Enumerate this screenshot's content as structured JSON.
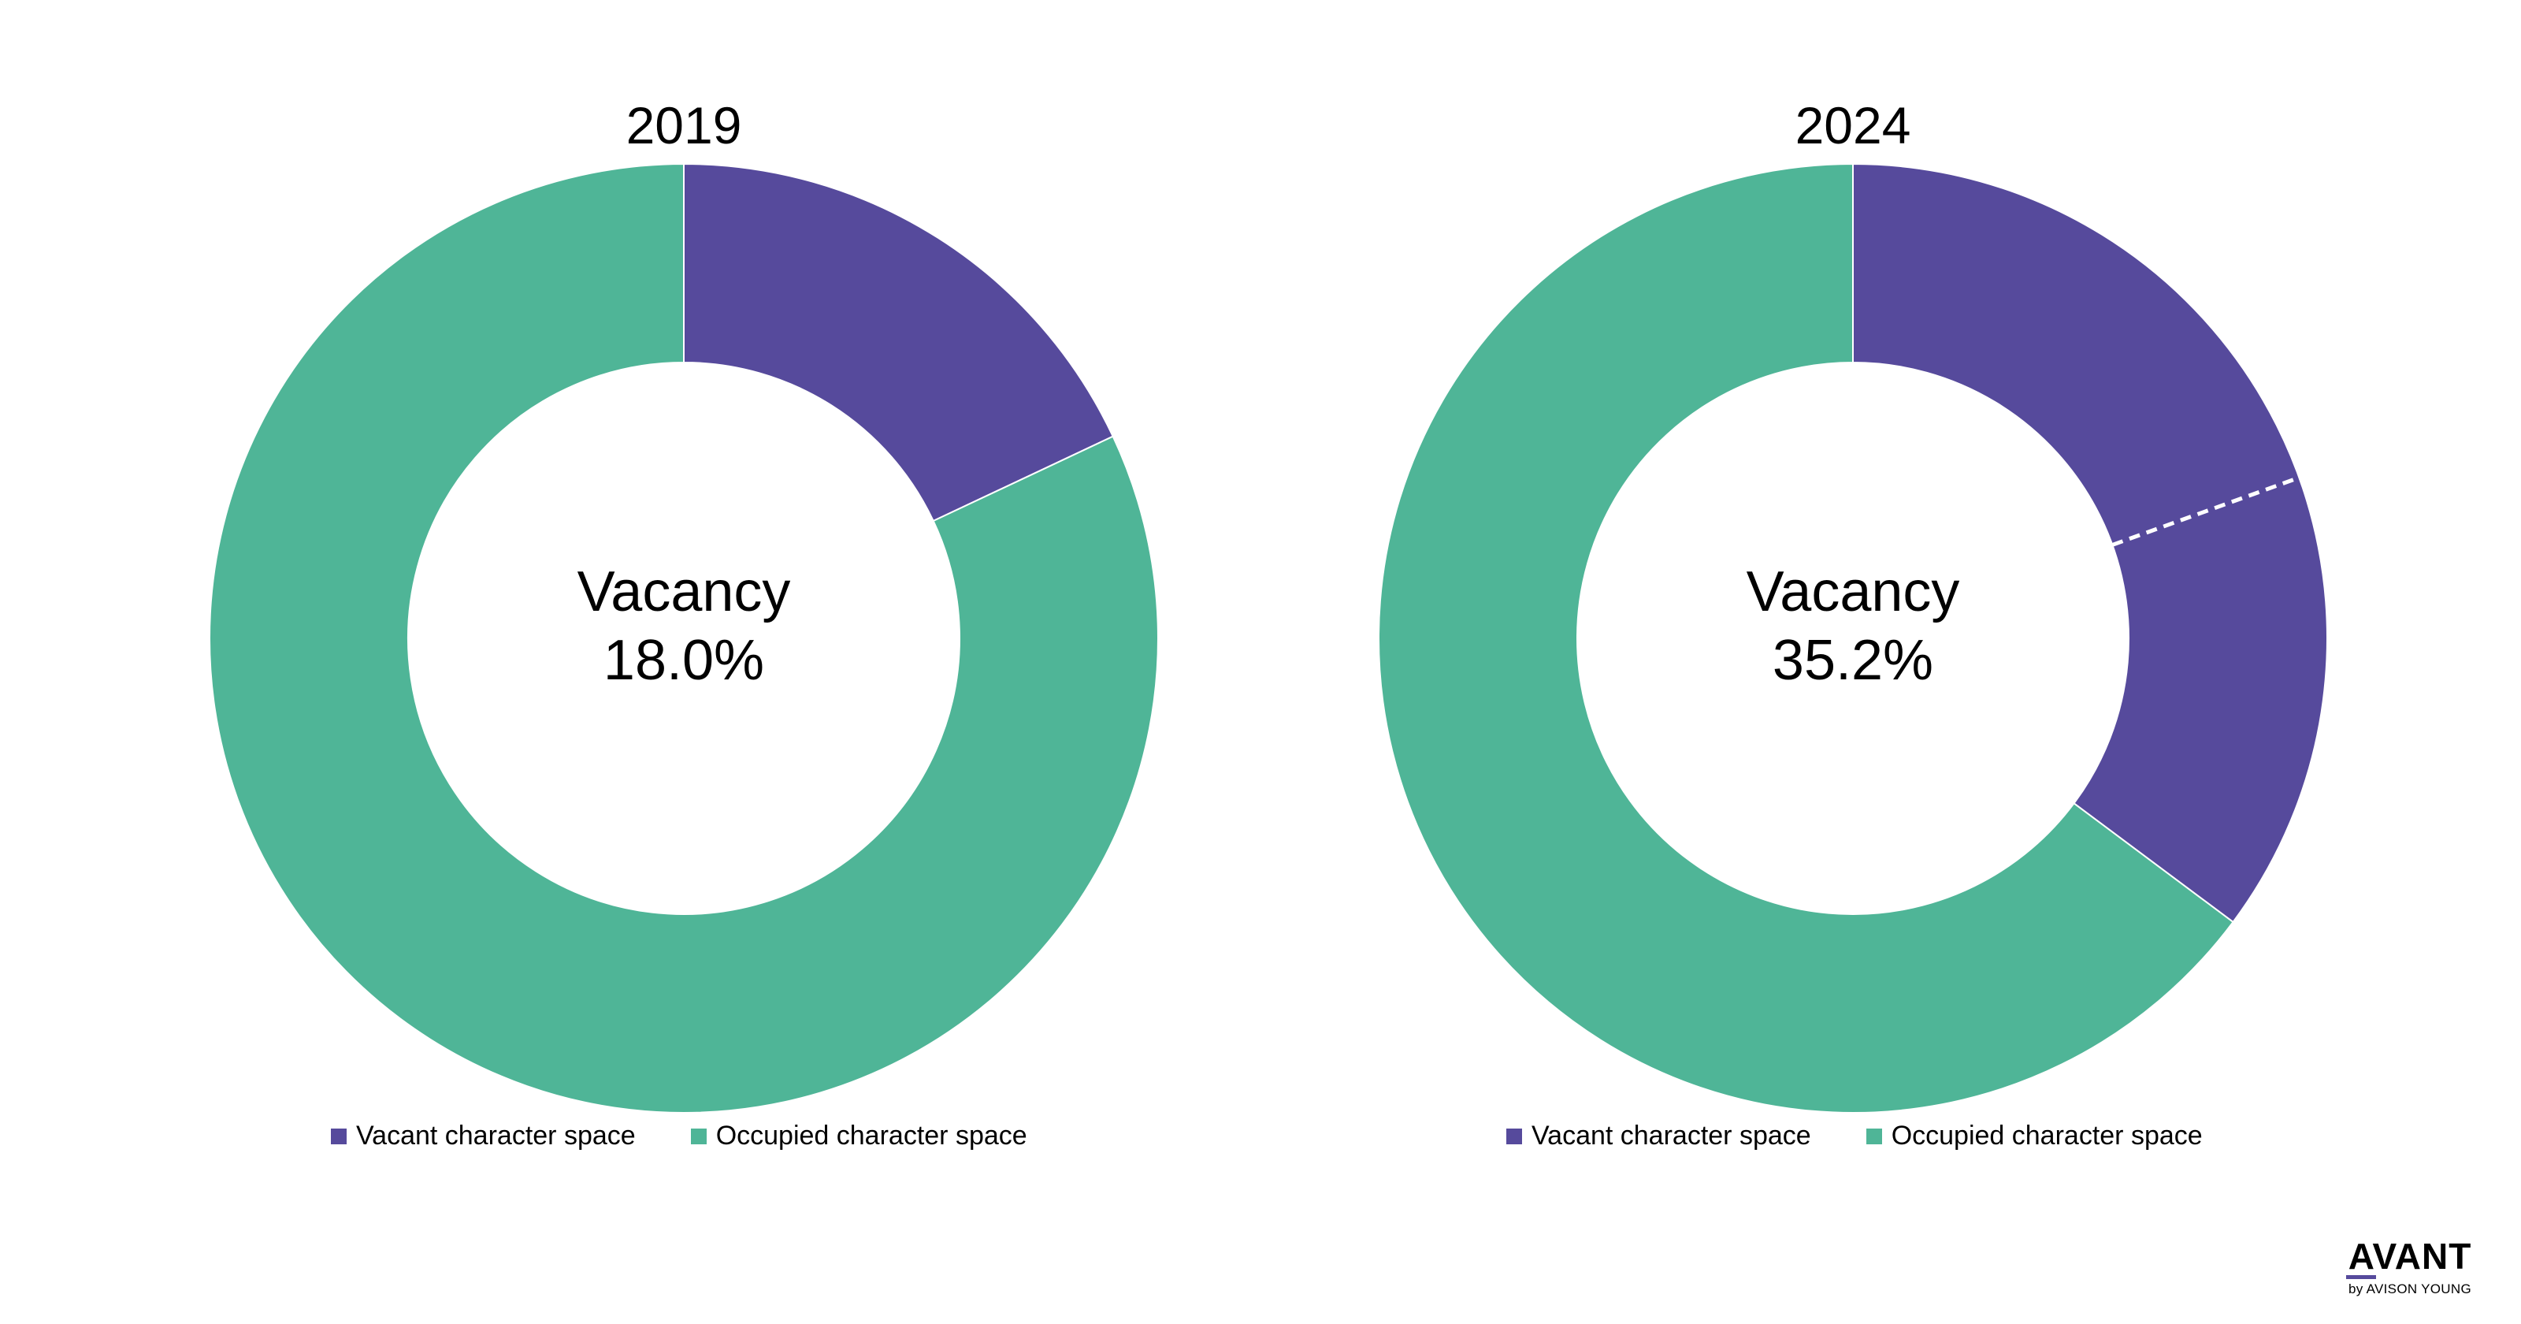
{
  "chart_data": [
    {
      "type": "donut",
      "title": "2019",
      "center_label": "Vacancy",
      "center_value": "18.0%",
      "series": [
        {
          "name": "Vacant character space",
          "value": 18.0,
          "color": "#564a9c"
        },
        {
          "name": "Occupied character space",
          "value": 82.0,
          "color": "#4fb597"
        }
      ],
      "vacant_breakdown": [],
      "legend_position": "bottom"
    },
    {
      "type": "donut",
      "title": "2024",
      "center_label": "Vacancy",
      "center_value": "35.2%",
      "series": [
        {
          "name": "Vacant character space",
          "value": 35.2,
          "color": "#564a9c"
        },
        {
          "name": "Occupied character space",
          "value": 64.8,
          "color": "#4fb597"
        }
      ],
      "vacant_breakdown": [
        19.5,
        15.7
      ],
      "legend_position": "bottom"
    }
  ],
  "logo": {
    "main": "AVANT",
    "sub": "by AVISON YOUNG",
    "accent_color": "#564a9c"
  }
}
